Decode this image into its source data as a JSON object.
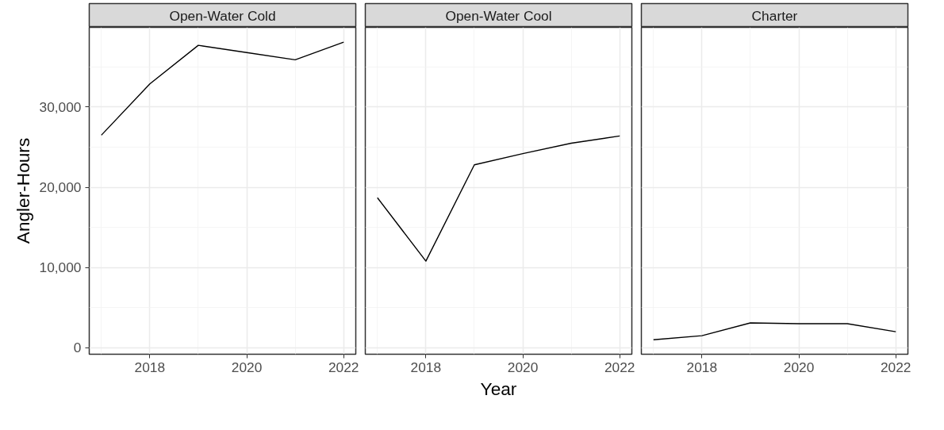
{
  "chart_data": [
    {
      "type": "line",
      "title": "Open-Water Cold",
      "ylabel": "Angler-Hours",
      "x": [
        2017,
        2018,
        2019,
        2020,
        2021,
        2022
      ],
      "series": [
        {
          "color": "#000000",
          "values": [
            26500,
            32900,
            37700,
            36800,
            35900,
            38100
          ]
        }
      ],
      "xlim": [
        2016.75,
        2022.25
      ],
      "ylim": [
        -810,
        39940
      ],
      "xticks": [
        2018,
        2020,
        2022
      ],
      "yticks": [
        0,
        {
          "value": 10000,
          "label": "10,000"
        },
        {
          "value": 20000,
          "label": "20,000"
        },
        {
          "value": 30000,
          "label": "30,000"
        }
      ],
      "grid": true
    },
    {
      "type": "line",
      "title": "Open-Water Cool",
      "xlabel": "Year",
      "x": [
        2017,
        2018,
        2019,
        2020,
        2021,
        2022
      ],
      "series": [
        {
          "color": "#000000",
          "values": [
            18700,
            10800,
            22800,
            24200,
            25500,
            26400
          ]
        }
      ],
      "xlim": [
        2016.75,
        2022.25
      ],
      "ylim": [
        -810,
        39940
      ],
      "xticks": [
        2018,
        2020,
        2022
      ],
      "yticks": [
        {
          "value": 0,
          "label": null
        },
        {
          "value": 10000,
          "label": null
        },
        {
          "value": 20000,
          "label": null
        },
        {
          "value": 30000,
          "label": null
        }
      ],
      "grid": true,
      "tick_labels": "x"
    },
    {
      "type": "line",
      "title": "Charter",
      "x": [
        2017,
        2018,
        2019,
        2020,
        2021,
        2022
      ],
      "series": [
        {
          "color": "#000000",
          "values": [
            1000,
            1500,
            3100,
            3000,
            3000,
            2000
          ]
        }
      ],
      "xlim": [
        2016.75,
        2022.25
      ],
      "ylim": [
        -810,
        39940
      ],
      "xticks": [
        2018,
        2020,
        2022
      ],
      "yticks": [
        {
          "value": 0,
          "label": null
        },
        {
          "value": 10000,
          "label": null
        },
        {
          "value": 20000,
          "label": null
        },
        {
          "value": 30000,
          "label": null
        }
      ],
      "grid": true,
      "tick_labels": "x"
    }
  ]
}
